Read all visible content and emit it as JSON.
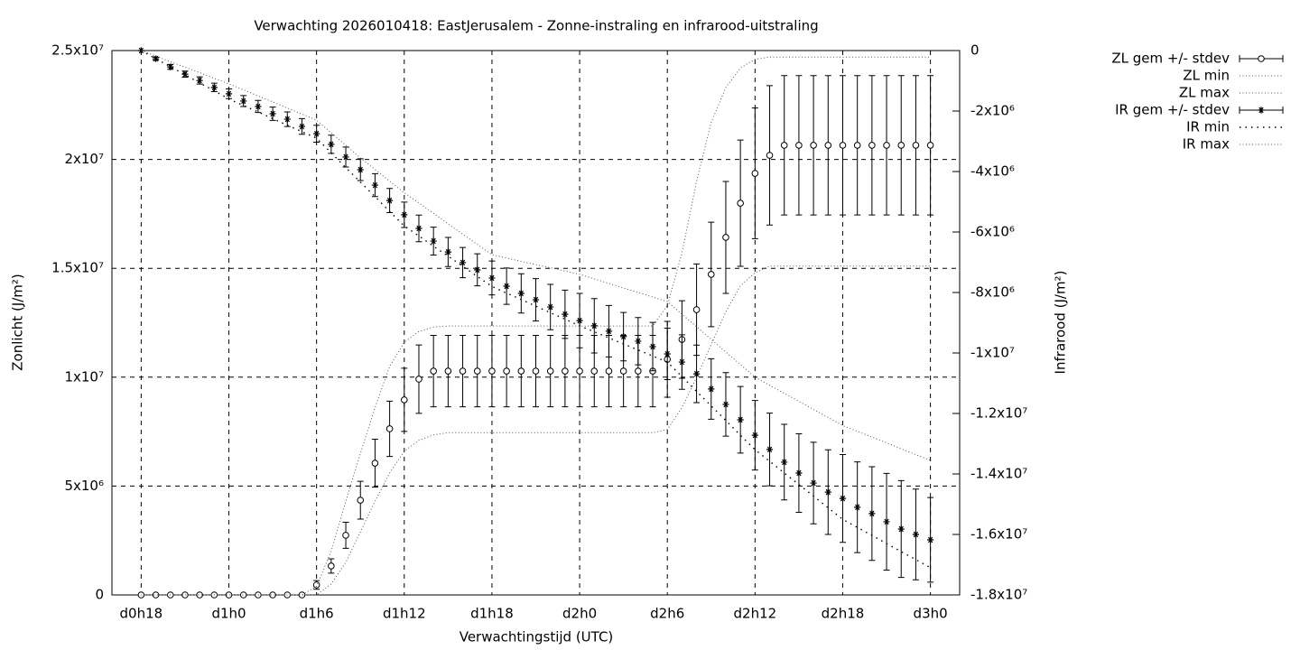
{
  "chart_data": {
    "type": "errorbar-line",
    "title": "Verwachting 2026010418: EastJerusalem - Zonne-instraling en infrarood-uitstraling",
    "xlabel": "Verwachtingstijd (UTC)",
    "ylabel": "Zonlicht (J/m²)",
    "y2label": "Infrarood (J/m²)",
    "grid": true,
    "legend": "top right outside",
    "xlim": [
      -2,
      56
    ],
    "xticks": [
      {
        "value": 0,
        "label": "d0h18"
      },
      {
        "value": 6,
        "label": "d1h0"
      },
      {
        "value": 12,
        "label": "d1h6"
      },
      {
        "value": 18,
        "label": "d1h12"
      },
      {
        "value": 24,
        "label": "d1h18"
      },
      {
        "value": 30,
        "label": "d2h0"
      },
      {
        "value": 36,
        "label": "d2h6"
      },
      {
        "value": 42,
        "label": "d2h12"
      },
      {
        "value": 48,
        "label": "d2h18"
      },
      {
        "value": 54,
        "label": "d3h0"
      }
    ],
    "ylim": [
      0,
      25000000.0
    ],
    "yticks": [
      0,
      {
        "value": 5000000.0,
        "label": "5x10⁶"
      },
      {
        "value": 10000000.0,
        "label": "1x10⁷"
      },
      {
        "value": 15000000.0,
        "label": "1.5x10⁷"
      },
      {
        "value": 20000000.0,
        "label": "2x10⁷"
      },
      {
        "value": 25000000.0,
        "label": "2.5x10⁷"
      }
    ],
    "y2lim": [
      -18000000.0,
      0
    ],
    "y2ticks": [
      0,
      {
        "value": -2000000.0,
        "label": "-2x10⁶"
      },
      {
        "value": -4000000.0,
        "label": "-4x10⁶"
      },
      {
        "value": -6000000.0,
        "label": "-6x10⁶"
      },
      {
        "value": -8000000.0,
        "label": "-8x10⁶"
      },
      {
        "value": -10000000.0,
        "label": "-1x10⁷"
      },
      {
        "value": -12000000.0,
        "label": "-1.2x10⁷"
      },
      {
        "value": -14000000.0,
        "label": "-1.4x10⁷"
      },
      {
        "value": -16000000.0,
        "label": "-1.6x10⁷"
      },
      {
        "value": -18000000.0,
        "label": "-1.8x10⁷"
      }
    ],
    "x": [
      0,
      1,
      2,
      3,
      4,
      5,
      6,
      7,
      8,
      9,
      10,
      11,
      12,
      13,
      14,
      15,
      16,
      17,
      18,
      19,
      20,
      21,
      22,
      23,
      24,
      25,
      26,
      27,
      28,
      29,
      30,
      31,
      32,
      33,
      34,
      35,
      36,
      37,
      38,
      39,
      40,
      41,
      42,
      43,
      44,
      45,
      46,
      47,
      48,
      49,
      50,
      51,
      52,
      53,
      54
    ],
    "series": [
      {
        "name": "ZL gem +/- stdev",
        "color": "#000000",
        "style": "errorbars",
        "marker": "circle",
        "axis": "y",
        "values": [
          0,
          0,
          0,
          0,
          0,
          0,
          0,
          0,
          0,
          0,
          0,
          0,
          460000.0,
          1330000.0,
          2740000.0,
          4350000.0,
          6050000.0,
          7630000.0,
          8960000.0,
          9910000.0,
          10280000.0,
          10280000.0,
          10280000.0,
          10280000.0,
          10280000.0,
          10280000.0,
          10280000.0,
          10280000.0,
          10280000.0,
          10280000.0,
          10280000.0,
          10280000.0,
          10280000.0,
          10280000.0,
          10280000.0,
          10280000.0,
          10820000.0,
          11730000.0,
          13100000.0,
          14720000.0,
          16420000.0,
          17990000.0,
          19360000.0,
          20190000.0,
          20650000.0,
          20650000.0,
          20650000.0,
          20650000.0,
          20650000.0,
          20650000.0,
          20650000.0,
          20650000.0,
          20650000.0,
          20650000.0,
          20650000.0
        ],
        "errors": [
          0,
          0,
          0,
          0,
          0,
          0,
          0,
          0,
          0,
          0,
          0,
          0,
          200000.0,
          330000.0,
          600000.0,
          870000.0,
          1100000.0,
          1270000.0,
          1450000.0,
          1570000.0,
          1640000.0,
          1640000.0,
          1640000.0,
          1640000.0,
          1640000.0,
          1640000.0,
          1640000.0,
          1640000.0,
          1640000.0,
          1640000.0,
          1640000.0,
          1640000.0,
          1640000.0,
          1640000.0,
          1640000.0,
          1640000.0,
          1740000.0,
          1780000.0,
          2100000.0,
          2400000.0,
          2570000.0,
          2900000.0,
          3000000.0,
          3200000.0,
          3200000.0,
          3200000.0,
          3200000.0,
          3200000.0,
          3200000.0,
          3200000.0,
          3200000.0,
          3200000.0,
          3200000.0,
          3200000.0,
          3200000.0
        ]
      },
      {
        "name": "ZL min",
        "color": "#555555",
        "style": "dotted",
        "axis": "y",
        "values": [
          0,
          0,
          0,
          0,
          0,
          0,
          0,
          0,
          0,
          0,
          0,
          0,
          0,
          500000.0,
          1500000.0,
          2900000.0,
          4300000.0,
          5600000.0,
          6600000.0,
          7100000.0,
          7350000.0,
          7450000.0,
          7450000.0,
          7450000.0,
          7450000.0,
          7450000.0,
          7450000.0,
          7450000.0,
          7450000.0,
          7450000.0,
          7450000.0,
          7450000.0,
          7450000.0,
          7450000.0,
          7450000.0,
          7450000.0,
          7600000.0,
          8600000.0,
          10000000.0,
          11500000.0,
          13000000.0,
          14200000.0,
          14800000.0,
          15100000.0,
          15100000.0,
          15100000.0,
          15100000.0,
          15100000.0,
          15100000.0,
          15100000.0,
          15100000.0,
          15100000.0,
          15100000.0,
          15100000.0,
          15100000.0
        ]
      },
      {
        "name": "ZL max",
        "color": "#555555",
        "style": "dotted",
        "axis": "y",
        "values": [
          0,
          0,
          0,
          0,
          0,
          0,
          0,
          0,
          0,
          0,
          0,
          0,
          400000.0,
          2000000.0,
          4300000.0,
          6500000.0,
          8600000.0,
          10500000.0,
          11600000.0,
          12100000.0,
          12300000.0,
          12350000.0,
          12350000.0,
          12350000.0,
          12350000.0,
          12350000.0,
          12350000.0,
          12350000.0,
          12350000.0,
          12350000.0,
          12350000.0,
          12350000.0,
          12350000.0,
          12350000.0,
          12350000.0,
          12350000.0,
          13300000.0,
          15700000.0,
          19000000.0,
          21700000.0,
          23300000.0,
          24200000.0,
          24600000.0,
          24700000.0,
          24700000.0,
          24700000.0,
          24700000.0,
          24700000.0,
          24700000.0,
          24700000.0,
          24700000.0,
          24700000.0,
          24700000.0,
          24700000.0,
          24700000.0
        ]
      },
      {
        "name": "IR gem +/- stdev",
        "color": "#000000",
        "style": "errorbars",
        "marker": "star",
        "axis": "y2",
        "values": [
          0,
          -270000.0,
          -540000.0,
          -780000.0,
          -990000.0,
          -1220000.0,
          -1430000.0,
          -1670000.0,
          -1850000.0,
          -2090000.0,
          -2270000.0,
          -2510000.0,
          -2750000.0,
          -3100000.0,
          -3520000.0,
          -3940000.0,
          -4450000.0,
          -4960000.0,
          -5430000.0,
          -5880000.0,
          -6300000.0,
          -6660000.0,
          -7010000.0,
          -7250000.0,
          -7520000.0,
          -7790000.0,
          -8030000.0,
          -8240000.0,
          -8480000.0,
          -8720000.0,
          -8930000.0,
          -9100000.0,
          -9280000.0,
          -9460000.0,
          -9610000.0,
          -9790000.0,
          -10030000.0,
          -10300000.0,
          -10690000.0,
          -11190000.0,
          -11700000.0,
          -12210000.0,
          -12720000.0,
          -13190000.0,
          -13610000.0,
          -13970000.0,
          -14300000.0,
          -14600000.0,
          -14810000.0,
          -15100000.0,
          -15310000.0,
          -15580000.0,
          -15820000.0,
          -16000000.0,
          -16180000.0
        ],
        "errors": [
          0,
          50000.0,
          80000.0,
          100000.0,
          120000.0,
          140000.0,
          160000.0,
          180000.0,
          200000.0,
          220000.0,
          240000.0,
          260000.0,
          280000.0,
          300000.0,
          330000.0,
          360000.0,
          380000.0,
          400000.0,
          420000.0,
          440000.0,
          460000.0,
          480000.0,
          500000.0,
          530000.0,
          560000.0,
          600000.0,
          650000.0,
          700000.0,
          750000.0,
          800000.0,
          900000.0,
          900000.0,
          850000.0,
          800000.0,
          780000.0,
          800000.0,
          850000.0,
          900000.0,
          950000.0,
          1000000.0,
          1050000.0,
          1100000.0,
          1150000.0,
          1200000.0,
          1250000.0,
          1300000.0,
          1350000.0,
          1400000.0,
          1450000.0,
          1500000.0,
          1550000.0,
          1600000.0,
          1600000.0,
          1500000.0,
          1400000.0
        ]
      },
      {
        "name": "IR min",
        "color": "#000000",
        "style": "dots",
        "axis": "y2",
        "values": [
          0,
          -270000.0,
          -530000.0,
          -800000.0,
          -1070000.0,
          -1330000.0,
          -1600000.0,
          -1820000.0,
          -2030000.0,
          -2250000.0,
          -2470000.0,
          -2680000.0,
          -2900000.0,
          -3380000.0,
          -3870000.0,
          -4350000.0,
          -4830000.0,
          -5320000.0,
          -5800000.0,
          -6130000.0,
          -6470000.0,
          -6800000.0,
          -7130000.0,
          -7470000.0,
          -7800000.0,
          -8020000.0,
          -8230000.0,
          -8450000.0,
          -8670000.0,
          -8880000.0,
          -9100000.0,
          -9300000.0,
          -9500000.0,
          -9700000.0,
          -9900000.0,
          -10100000.0,
          -10300000.0,
          -10780000.0,
          -11270000.0,
          -11750000.0,
          -12230000.0,
          -12720000.0,
          -13200000.0,
          -13580000.0,
          -13970000.0,
          -14350000.0,
          -14730000.0,
          -15120000.0,
          -15500000.0,
          -15770000.0,
          -16030000.0,
          -16300000.0,
          -16570000.0,
          -16830000.0,
          -17100000.0
        ]
      },
      {
        "name": "IR max",
        "color": "#555555",
        "style": "dotted",
        "axis": "y2",
        "values": [
          0,
          -180000.0,
          -370000.0,
          -550000.0,
          -730000.0,
          -920000.0,
          -1100000.0,
          -1300000.0,
          -1500000.0,
          -1700000.0,
          -1900000.0,
          -2100000.0,
          -2300000.0,
          -2720000.0,
          -3130000.0,
          -3550000.0,
          -3930000.0,
          -4320000.0,
          -4700000.0,
          -5040000.0,
          -5380000.0,
          -5730000.0,
          -6070000.0,
          -6410000.0,
          -6750000.0,
          -6860000.0,
          -6970000.0,
          -7080000.0,
          -7180000.0,
          -7290000.0,
          -7400000.0,
          -7550000.0,
          -7700000.0,
          -7850000.0,
          -8000000.0,
          -8150000.0,
          -8300000.0,
          -8720000.0,
          -9130000.0,
          -9550000.0,
          -9970000.0,
          -10380000.0,
          -10800000.0,
          -11070000.0,
          -11330000.0,
          -11600000.0,
          -11870000.0,
          -12130000.0,
          -12400000.0,
          -12590000.0,
          -12780000.0,
          -12970000.0,
          -13170000.0,
          -13360000.0,
          -13550000.0
        ]
      }
    ]
  }
}
